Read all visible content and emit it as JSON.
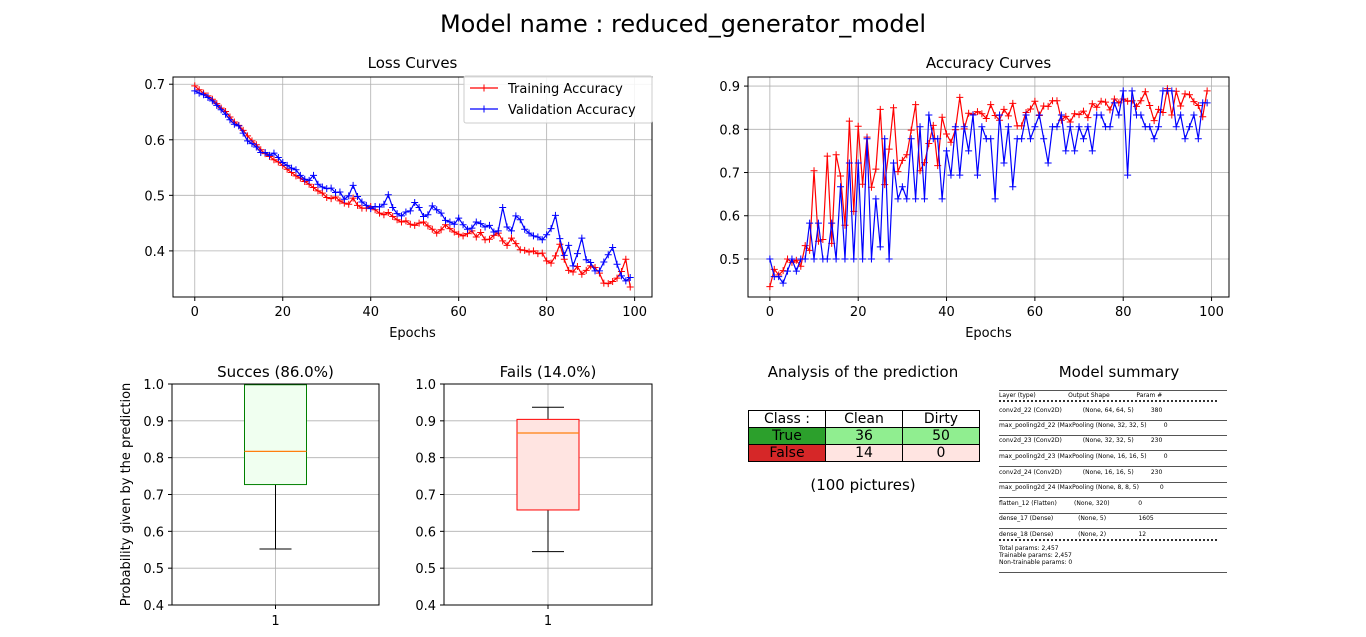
{
  "title": "Model name : reduced_generator_model",
  "chart_data": [
    {
      "type": "line",
      "title": "Loss Curves",
      "xlabel": "Epochs",
      "ylabel": "",
      "xlim": [
        -4.95,
        103.95
      ],
      "ylim": [
        0.317,
        0.713
      ],
      "xticks": [
        0,
        20,
        40,
        60,
        80,
        100
      ],
      "yticks": [
        0.4,
        0.5,
        0.6,
        0.7
      ],
      "grid": true,
      "legend": "top-right",
      "series": [
        {
          "name": "Training Accuracy",
          "color": "#ff0000",
          "values": [
            0.697,
            0.69,
            0.684,
            0.679,
            0.673,
            0.665,
            0.657,
            0.651,
            0.641,
            0.632,
            0.626,
            0.617,
            0.607,
            0.598,
            0.591,
            0.582,
            0.575,
            0.57,
            0.564,
            0.56,
            0.554,
            0.547,
            0.541,
            0.535,
            0.531,
            0.525,
            0.52,
            0.514,
            0.508,
            0.504,
            0.496,
            0.494,
            0.497,
            0.49,
            0.486,
            0.484,
            0.495,
            0.482,
            0.477,
            0.477,
            0.48,
            0.474,
            0.468,
            0.465,
            0.469,
            0.462,
            0.456,
            0.452,
            0.454,
            0.448,
            0.446,
            0.45,
            0.452,
            0.445,
            0.439,
            0.432,
            0.438,
            0.447,
            0.44,
            0.434,
            0.43,
            0.427,
            0.431,
            0.436,
            0.425,
            0.433,
            0.42,
            0.421,
            0.428,
            0.432,
            0.418,
            0.41,
            0.423,
            0.413,
            0.402,
            0.401,
            0.398,
            0.4,
            0.395,
            0.396,
            0.382,
            0.378,
            0.391,
            0.412,
            0.385,
            0.365,
            0.362,
            0.372,
            0.358,
            0.365,
            0.373,
            0.37,
            0.36,
            0.342,
            0.341,
            0.345,
            0.351,
            0.363,
            0.385,
            0.335
          ]
        },
        {
          "name": "Validation Accuracy",
          "color": "#0000ff",
          "values": [
            0.688,
            0.684,
            0.681,
            0.676,
            0.67,
            0.662,
            0.654,
            0.646,
            0.636,
            0.628,
            0.625,
            0.612,
            0.598,
            0.593,
            0.587,
            0.577,
            0.577,
            0.572,
            0.576,
            0.568,
            0.559,
            0.554,
            0.549,
            0.546,
            0.536,
            0.529,
            0.527,
            0.536,
            0.52,
            0.515,
            0.512,
            0.513,
            0.505,
            0.506,
            0.493,
            0.499,
            0.518,
            0.498,
            0.488,
            0.482,
            0.476,
            0.48,
            0.479,
            0.484,
            0.501,
            0.478,
            0.467,
            0.463,
            0.47,
            0.472,
            0.487,
            0.478,
            0.462,
            0.465,
            0.481,
            0.474,
            0.468,
            0.455,
            0.452,
            0.448,
            0.459,
            0.447,
            0.439,
            0.441,
            0.452,
            0.449,
            0.443,
            0.446,
            0.434,
            0.436,
            0.478,
            0.443,
            0.436,
            0.463,
            0.456,
            0.439,
            0.432,
            0.427,
            0.425,
            0.42,
            0.429,
            0.44,
            0.464,
            0.422,
            0.392,
            0.41,
            0.373,
            0.395,
            0.423,
            0.384,
            0.379,
            0.364,
            0.364,
            0.38,
            0.393,
            0.406,
            0.376,
            0.355,
            0.346,
            0.352
          ]
        }
      ]
    },
    {
      "type": "line",
      "title": "Accuracy Curves",
      "xlabel": "Epochs",
      "ylabel": "",
      "xlim": [
        -4.95,
        103.95
      ],
      "ylim": [
        0.412,
        0.921
      ],
      "xticks": [
        0,
        20,
        40,
        60,
        80,
        100
      ],
      "yticks": [
        0.5,
        0.6,
        0.7,
        0.8,
        0.9
      ],
      "grid": true,
      "series": [
        {
          "name": "Training Accuracy",
          "color": "#ff0000",
          "values": [
            0.436,
            0.476,
            0.463,
            0.473,
            0.5,
            0.492,
            0.497,
            0.483,
            0.531,
            0.52,
            0.704,
            0.541,
            0.545,
            0.738,
            0.536,
            0.741,
            0.692,
            0.578,
            0.819,
            0.61,
            0.807,
            0.673,
            0.782,
            0.666,
            0.708,
            0.846,
            0.672,
            0.754,
            0.85,
            0.702,
            0.728,
            0.741,
            0.798,
            0.857,
            0.704,
            0.723,
            0.767,
            0.809,
            0.716,
            0.828,
            0.789,
            0.77,
            0.799,
            0.874,
            0.801,
            0.837,
            0.834,
            0.841,
            0.836,
            0.825,
            0.857,
            0.832,
            0.821,
            0.846,
            0.831,
            0.86,
            0.808,
            0.808,
            0.839,
            0.847,
            0.865,
            0.832,
            0.854,
            0.853,
            0.866,
            0.866,
            0.821,
            0.83,
            0.817,
            0.836,
            0.834,
            0.842,
            0.827,
            0.859,
            0.851,
            0.865,
            0.863,
            0.845,
            0.87,
            0.861,
            0.87,
            0.865,
            0.866,
            0.853,
            0.866,
            0.887,
            0.855,
            0.82,
            0.846,
            0.839,
            0.894,
            0.833,
            0.888,
            0.854,
            0.882,
            0.88,
            0.864,
            0.855,
            0.829,
            0.889
          ]
        },
        {
          "name": "Validation Accuracy",
          "color": "#0000ff",
          "values": [
            0.5,
            0.459,
            0.459,
            0.444,
            0.472,
            0.5,
            0.472,
            0.5,
            0.5,
            0.583,
            0.5,
            0.583,
            0.5,
            0.5,
            0.583,
            0.5,
            0.667,
            0.5,
            0.722,
            0.5,
            0.722,
            0.5,
            0.778,
            0.5,
            0.639,
            0.528,
            0.778,
            0.5,
            0.722,
            0.639,
            0.667,
            0.639,
            0.778,
            0.639,
            0.806,
            0.639,
            0.833,
            0.778,
            0.778,
            0.639,
            0.75,
            0.694,
            0.806,
            0.694,
            0.806,
            0.75,
            0.833,
            0.694,
            0.806,
            0.778,
            0.778,
            0.639,
            0.833,
            0.722,
            0.806,
            0.667,
            0.778,
            0.778,
            0.833,
            0.778,
            0.806,
            0.833,
            0.778,
            0.722,
            0.806,
            0.806,
            0.833,
            0.75,
            0.806,
            0.75,
            0.806,
            0.778,
            0.806,
            0.75,
            0.833,
            0.833,
            0.806,
            0.806,
            0.861,
            0.833,
            0.889,
            0.694,
            0.889,
            0.833,
            0.833,
            0.806,
            0.806,
            0.778,
            0.806,
            0.889,
            0.889,
            0.889,
            0.806,
            0.833,
            0.778,
            0.806,
            0.833,
            0.778,
            0.861,
            0.861
          ]
        }
      ]
    },
    {
      "type": "box",
      "title": "Succes (86.0%)",
      "ylabel": "Probability given by the prediction",
      "ylim": [
        0.4,
        1.0
      ],
      "yticks": [
        0.4,
        0.5,
        0.6,
        0.7,
        0.8,
        0.9,
        1.0
      ],
      "xticks": [
        "1"
      ],
      "grid": true,
      "box": {
        "whisker_low": 0.552,
        "q1": 0.727,
        "median": 0.817,
        "q3": 0.998,
        "whisker_high": 0.998
      },
      "edge_color": "#008000",
      "fill_color": "#f0fff0",
      "median_color": "#ff7f0e"
    },
    {
      "type": "box",
      "title": "Fails (14.0%)",
      "ylabel": "",
      "ylim": [
        0.4,
        1.0
      ],
      "yticks": [
        0.4,
        0.5,
        0.6,
        0.7,
        0.8,
        0.9,
        1.0
      ],
      "xticks": [
        "1"
      ],
      "grid": true,
      "box": {
        "whisker_low": 0.545,
        "q1": 0.658,
        "median": 0.867,
        "q3": 0.904,
        "whisker_high": 0.937
      },
      "edge_color": "#ff0000",
      "fill_color": "#ffe4e1",
      "median_color": "#ff7f0e"
    }
  ],
  "analysis": {
    "title": "Analysis of the prediction",
    "header": [
      "Class :",
      "Clean",
      "Dirty"
    ],
    "rows": [
      {
        "label": "True",
        "clean": "36",
        "dirty": "50",
        "label_color": "#2ca02c",
        "cell_color": "#90ee90"
      },
      {
        "label": "False",
        "clean": "14",
        "dirty": "0",
        "label_color": "#d62728",
        "cell_color": "#ffe4e1"
      }
    ],
    "footer": "(100 pictures)"
  },
  "summary": {
    "title": "Model summary",
    "header": "Layer (type)                 Output Shape              Param #",
    "layers": [
      "conv2d_22 (Conv2D)           (None, 64, 64, 5)         380",
      "max_pooling2d_22 (MaxPooling (None, 32, 32, 5)         0",
      "conv2d_23 (Conv2D)           (None, 32, 32, 5)         230",
      "max_pooling2d_23 (MaxPooling (None, 16, 16, 5)         0",
      "conv2d_24 (Conv2D)           (None, 16, 16, 5)         230",
      "max_pooling2d_24 (MaxPooling (None, 8, 8, 5)           0",
      "flatten_12 (Flatten)         (None, 320)               0",
      "dense_17 (Dense)             (None, 5)                 1605",
      "dense_18 (Dense)             (None, 2)                 12"
    ],
    "totals": [
      "Total params: 2,457",
      "Trainable params: 2,457",
      "Non-trainable params: 0"
    ]
  }
}
